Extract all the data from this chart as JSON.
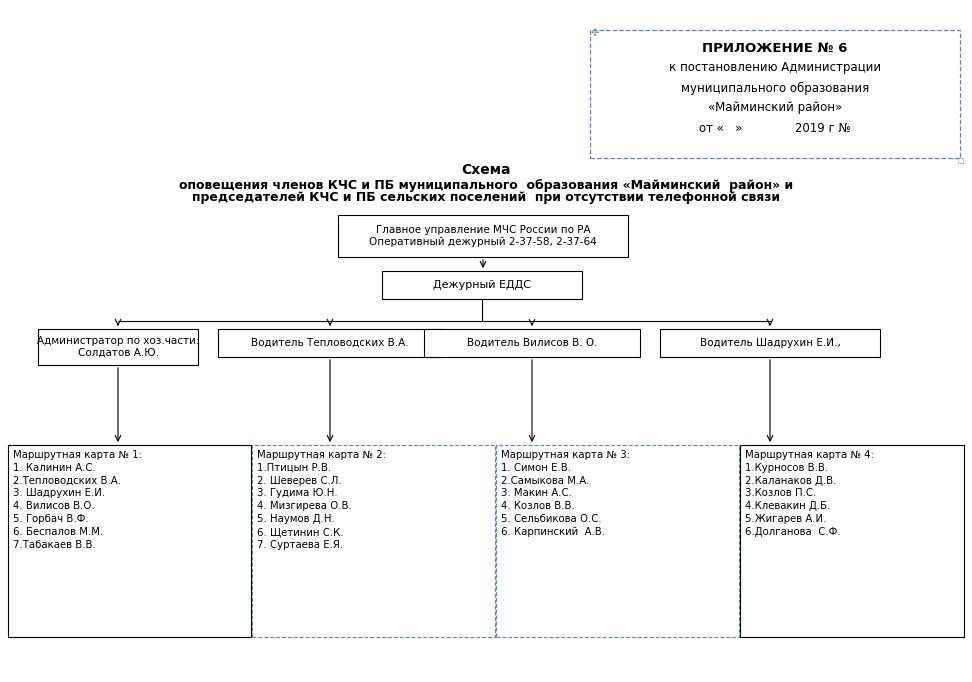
{
  "title_line1": "Схема",
  "title_line2": "оповещения членов КЧС и ПБ муниципального  образования «Майминский  район» и",
  "title_line3": "председателей КЧС и ПБ сельских поселений  при отсутствии телефонной связи",
  "appendix_lines": [
    "ПРИЛОЖЕНИЕ № 6",
    "к постановлению Администрации",
    "муниципального образования",
    "«Майминский район»",
    "от «   »              2019 г №"
  ],
  "box_mchs": "Главное управление МЧС России по РА\nОперативный дежурный 2-37-58, 2-37-64",
  "box_edds": "Дежурный ЕДДС",
  "box_admin": "Администратор по хоз.части:\nСолдатов А.Ю.",
  "box_driver1": "Водитель Тепловодских В.А.",
  "box_driver2": "Водитель Вилисов В. О.",
  "box_driver3": "Водитель Шадрухин Е.И.,",
  "box_map1_title": "Маршрутная карта № 1:",
  "box_map1_items": [
    "1. Калинин А.С.",
    "2.Тепловодских В.А.",
    "3. Шадрухин Е.И.",
    "4. Вилисов В.О.",
    "5. Горбач В.Ф.",
    "6. Беспалов М.М.",
    "7.Табакаев В.В."
  ],
  "box_map2_title": "Маршрутная карта № 2:",
  "box_map2_items": [
    "1.Птицын Р.В.",
    "2. Шеверев С.Л.",
    "3. Гудима Ю.Н.",
    "4. Мизгирева О.В.",
    "5. Наумов Д.Н.",
    "6. Щетинин С.К.",
    "7. Суртаева Е.Я."
  ],
  "box_map3_title": "Маршрутная карта № 3:",
  "box_map3_items": [
    "1. Симон Е.В.",
    "2.Самыкова М.А.",
    "3. Макин А.С.",
    "4. Козлов В.В.",
    "5. Сельбикова О.С.",
    "6. Карпинский  А.В."
  ],
  "box_map4_title": "Маршрутная карта № 4:",
  "box_map4_items": [
    "1.Курносов В.В.",
    "2.Каланаков Д.В.",
    "3.Козлов П.С.",
    "4.Клевакин Д.Б.",
    "5.Жигарев А.И.",
    "6.Долганова  С.Ф."
  ],
  "bg_color": "#ffffff",
  "text_color": "#000000",
  "dashed_color": "#5588bb"
}
